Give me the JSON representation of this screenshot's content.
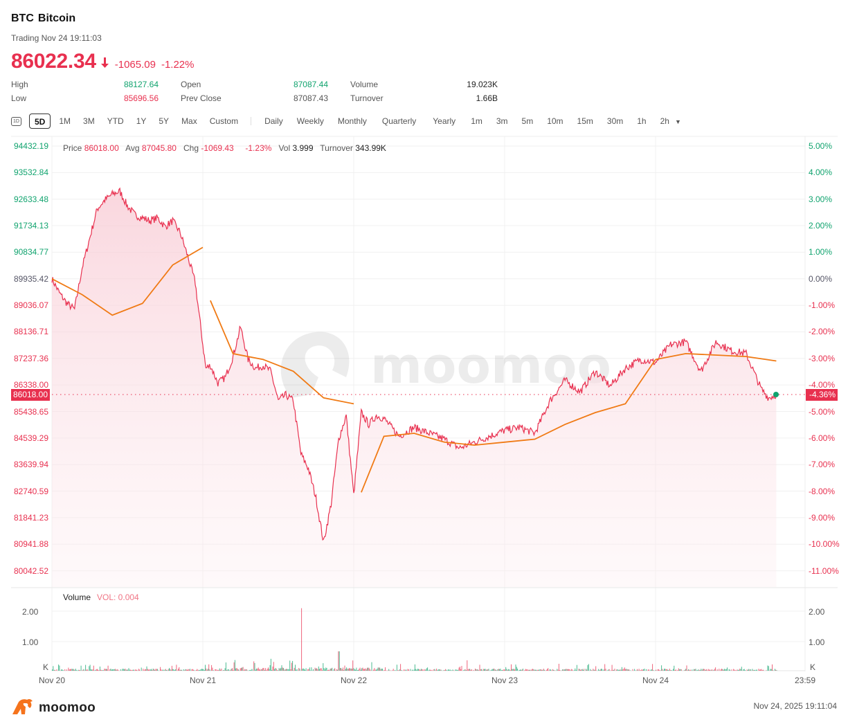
{
  "header": {
    "symbol": "BTC",
    "name": "Bitcoin",
    "status": "Trading Nov 24 19:11:03",
    "price": "86022.34",
    "direction_icon": "arrow-down-icon",
    "change": "-1065.09",
    "change_pct": "-1.22%"
  },
  "stats": {
    "high_label": "High",
    "high": "88127.64",
    "low_label": "Low",
    "low": "85696.56",
    "open_label": "Open",
    "open": "87087.44",
    "prev_close_label": "Prev Close",
    "prev_close": "87087.43",
    "volume_label": "Volume",
    "volume": "19.023K",
    "turnover_label": "Turnover",
    "turnover": "1.66B"
  },
  "range_tabs": {
    "icon_1d": "1D",
    "items": [
      "5D",
      "1M",
      "3M",
      "YTD",
      "1Y",
      "5Y",
      "Max",
      "Custom"
    ],
    "active": "5D"
  },
  "interval_tabs": {
    "items": [
      "Daily",
      "Weekly",
      "Monthly",
      "Quarterly",
      "Yearly",
      "1m",
      "3m",
      "5m",
      "10m",
      "15m",
      "30m",
      "1h",
      "2h"
    ],
    "dropdown_icon": "caret-down-icon"
  },
  "legend": {
    "price_label": "Price",
    "price": "86018.00",
    "avg_label": "Avg",
    "avg": "87045.80",
    "chg_label": "Chg",
    "chg": "-1069.43",
    "chg_pct": "-1.23%",
    "vol_label": "Vol",
    "vol": "3.999",
    "turnover_label": "Turnover",
    "turnover": "343.99K"
  },
  "current_price_tag": "86018.00",
  "current_pct_tag": "-4.36%",
  "volume_panel": {
    "title": "Volume",
    "vol_value": "VOL: 0.004",
    "left_ticks": [
      "2.00",
      "1.00",
      "K"
    ],
    "right_ticks": [
      "2.00",
      "1.00",
      "K"
    ]
  },
  "watermark": "moomoo",
  "footer": {
    "logo_text": "moomoo",
    "timestamp": "Nov 24, 2025 19:11:04"
  },
  "colors": {
    "up": "#10a36e",
    "down": "#e8304f",
    "avg_line": "#f07a14",
    "fill": "#fbdde3"
  },
  "chart_data": {
    "type": "line",
    "title": "BTC Bitcoin 5D intraday",
    "xlabel": "",
    "ylabel": "Price",
    "x_ticks": [
      "Nov 20",
      "Nov 21",
      "Nov 22",
      "Nov 23",
      "Nov 24",
      "23:59"
    ],
    "y_ticks_left": [
      "94432.19",
      "93532.84",
      "92633.48",
      "91734.13",
      "90834.77",
      "89935.42",
      "89036.07",
      "88136.71",
      "87237.36",
      "86338.00",
      "85438.65",
      "84539.29",
      "83639.94",
      "82740.59",
      "81841.23",
      "80941.88",
      "80042.52"
    ],
    "y_ticks_right": [
      "5.00%",
      "4.00%",
      "3.00%",
      "2.00%",
      "1.00%",
      "0.00%",
      "-1.00%",
      "-2.00%",
      "-3.00%",
      "-4.00%",
      "-5.00%",
      "-6.00%",
      "-7.00%",
      "-8.00%",
      "-9.00%",
      "-10.00%",
      "-11.00%"
    ],
    "ylim": [
      80042.52,
      94432.19
    ],
    "baseline": 89935.42,
    "grid": true,
    "series": [
      {
        "name": "Price",
        "x": [
          0,
          0.05,
          0.1,
          0.15,
          0.2,
          0.25,
          0.3,
          0.35,
          0.4,
          0.45,
          0.5,
          0.55,
          0.6,
          0.65,
          0.7,
          0.75,
          0.8,
          0.85,
          0.9,
          0.95,
          1.0,
          1.02,
          1.05,
          1.1,
          1.15,
          1.2,
          1.25,
          1.3,
          1.35,
          1.4,
          1.45,
          1.5,
          1.55,
          1.6,
          1.65,
          1.7,
          1.75,
          1.8,
          1.85,
          1.9,
          1.95,
          2.0,
          2.05,
          2.1,
          2.15,
          2.2,
          2.3,
          2.4,
          2.5,
          2.6,
          2.7,
          2.8,
          2.9,
          3.0,
          3.1,
          3.2,
          3.3,
          3.4,
          3.5,
          3.6,
          3.7,
          3.8,
          3.9,
          4.0,
          4.1,
          4.2,
          4.3,
          4.4,
          4.5,
          4.6,
          4.7,
          4.75,
          4.8
        ],
        "values": [
          89935,
          89450,
          89100,
          88900,
          90300,
          91300,
          92300,
          92600,
          92800,
          92900,
          92400,
          92100,
          92000,
          91900,
          92000,
          91700,
          91900,
          91500,
          90700,
          89800,
          87700,
          86900,
          87000,
          86400,
          86600,
          87300,
          88300,
          87200,
          86900,
          87000,
          86800,
          85800,
          86000,
          85800,
          84000,
          83500,
          82500,
          81000,
          82300,
          84500,
          85300,
          82600,
          85400,
          85000,
          85300,
          85200,
          84600,
          84900,
          84700,
          84500,
          84200,
          84400,
          84600,
          84800,
          84900,
          84700,
          85800,
          86500,
          86100,
          86800,
          86300,
          86900,
          87200,
          87100,
          87700,
          87800,
          86800,
          87800,
          87500,
          87400,
          86200,
          85900,
          86018
        ]
      },
      {
        "name": "Avg",
        "x": [
          0,
          0.2,
          0.4,
          0.6,
          0.8,
          1.0,
          1.05,
          1.2,
          1.4,
          1.6,
          1.8,
          2.0,
          2.05,
          2.2,
          2.4,
          2.6,
          2.8,
          3.0,
          3.2,
          3.4,
          3.6,
          3.8,
          4.0,
          4.2,
          4.4,
          4.6,
          4.8
        ],
        "values": [
          89935,
          89400,
          88700,
          89100,
          90400,
          91000,
          89200,
          87400,
          87200,
          86800,
          85900,
          85700,
          82700,
          84600,
          84700,
          84400,
          84300,
          84400,
          84500,
          85000,
          85400,
          85700,
          87200,
          87400,
          87350,
          87300,
          87150
        ]
      }
    ],
    "volume": {
      "unit": "K",
      "ylim": [
        0,
        2.2
      ],
      "spikes": [
        {
          "x": 1.65,
          "value": 2.1
        },
        {
          "x": 1.9,
          "value": 0.65
        },
        {
          "x": 1.45,
          "value": 0.4
        },
        {
          "x": 2.75,
          "value": 0.35
        }
      ],
      "typical_value": 0.05
    }
  }
}
